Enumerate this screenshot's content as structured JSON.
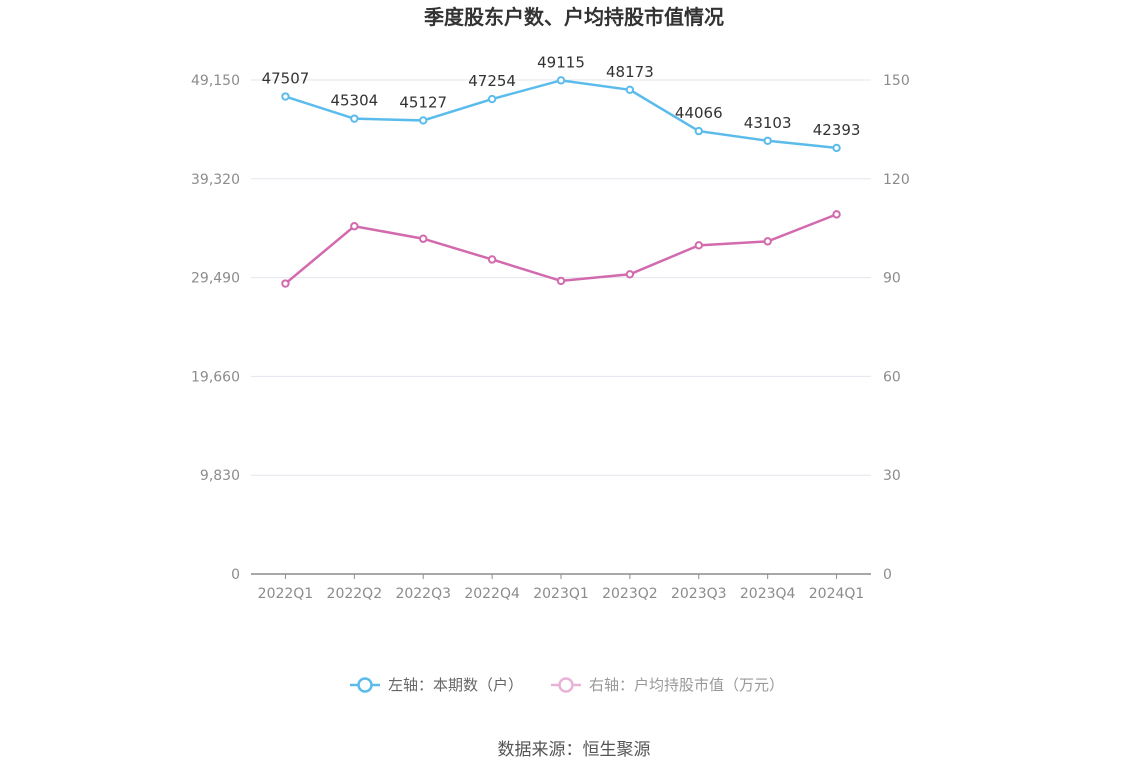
{
  "chart_data": {
    "type": "line",
    "title": "季度股东户数、户均持股市值情况",
    "categories": [
      "2022Q1",
      "2022Q2",
      "2022Q3",
      "2022Q4",
      "2023Q1",
      "2023Q2",
      "2023Q3",
      "2023Q4",
      "2024Q1"
    ],
    "left_axis": {
      "ticks": [
        "0",
        "9,830",
        "19,660",
        "29,490",
        "39,320",
        "49,150"
      ],
      "ylim": [
        0,
        49150
      ]
    },
    "right_axis": {
      "ticks": [
        "0",
        "30",
        "60",
        "90",
        "120",
        "150"
      ],
      "ylim": [
        0,
        150
      ]
    },
    "grid": true,
    "legend_position": "bottom",
    "series": [
      {
        "name": "左轴：本期数（户）",
        "axis": "left",
        "color": "#5bbcec",
        "values": [
          47507,
          45304,
          45127,
          47254,
          49115,
          48173,
          44066,
          43103,
          42393
        ],
        "labels": [
          "47507",
          "45304",
          "45127",
          "47254",
          "49115",
          "48173",
          "44066",
          "43103",
          "42393"
        ]
      },
      {
        "name": "右轴：户均持股市值（万元）",
        "axis": "right",
        "color": "#d26aad",
        "legend_color": "#e8b4d6",
        "values": [
          88.2,
          105.6,
          101.8,
          95.5,
          89.0,
          91.0,
          99.8,
          101.0,
          109.2
        ]
      }
    ]
  },
  "source": "数据来源：恒生聚源"
}
